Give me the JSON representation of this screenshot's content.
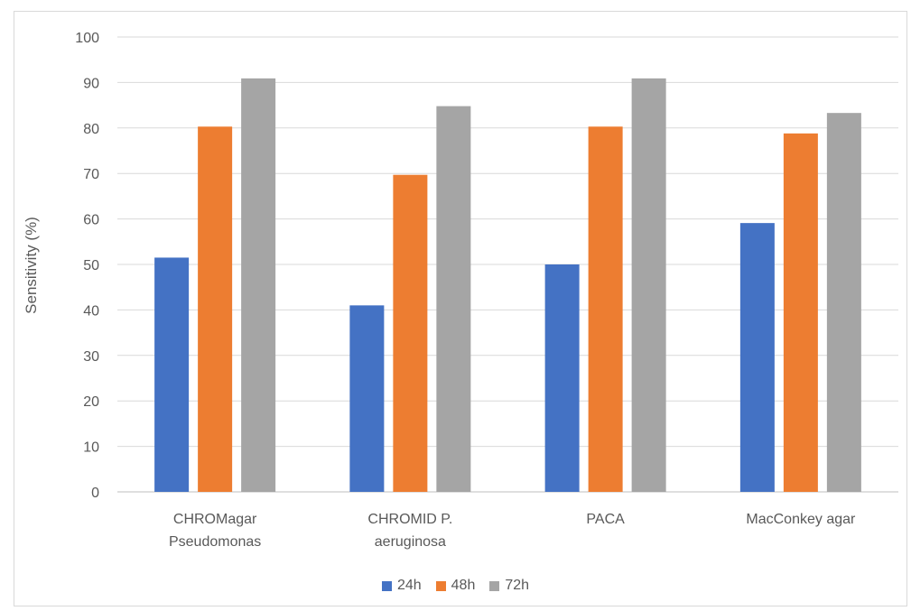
{
  "chart_data": {
    "type": "bar",
    "categories": [
      [
        "CHROMagar",
        "Pseudomonas"
      ],
      [
        "CHROMID P.",
        "aeruginosa"
      ],
      [
        "PACA"
      ],
      [
        "MacConkey agar"
      ]
    ],
    "series": [
      {
        "name": "24h",
        "color": "#4472c4",
        "values": [
          51.5,
          41.0,
          50.0,
          59.1
        ]
      },
      {
        "name": "48h",
        "color": "#ed7d31",
        "values": [
          80.3,
          69.7,
          80.3,
          78.8
        ]
      },
      {
        "name": "72h",
        "color": "#a5a5a5",
        "values": [
          90.9,
          84.8,
          90.9,
          83.3
        ]
      }
    ],
    "ylabel": "Sensitivity (%)",
    "ylim": [
      0,
      100
    ],
    "yticks": [
      0,
      10,
      20,
      30,
      40,
      50,
      60,
      70,
      80,
      90,
      100
    ],
    "grid": true,
    "legend_position": "bottom"
  }
}
